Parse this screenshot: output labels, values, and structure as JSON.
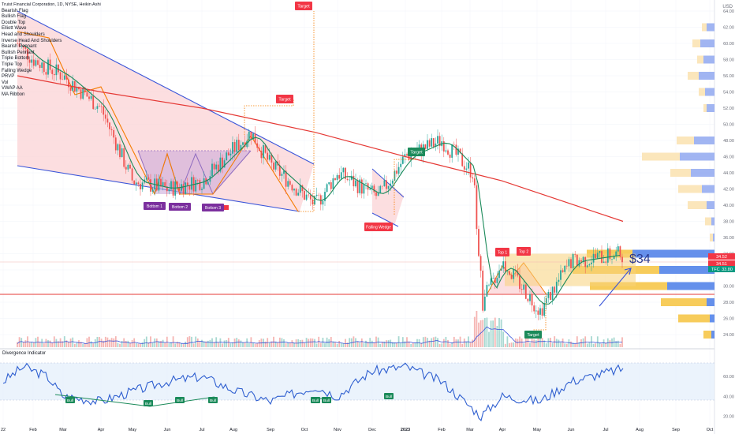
{
  "header": {
    "title": "Truist Financial Corporation, 1D, NYSE, Heikin Ashi",
    "currency": "USD"
  },
  "legend_items": [
    "Bearish Flag",
    "Bullish Flag",
    "Double Top",
    "Elliott Wave",
    "Head and Shoulders",
    "Inverse Head And Shoulders",
    "Bearish Pennant",
    "Bullish Pennant",
    "Triple Bottom",
    "Triple Top",
    "Falling Wedge",
    "PRVP",
    "Vol",
    "VWAP AA",
    "MA Ribbon"
  ],
  "indicator": {
    "title": "Divergence Indicator"
  },
  "annotations": {
    "target_labels": [
      "Target",
      "Target",
      "Target",
      "Target"
    ],
    "bottoms": [
      "Bottom 1",
      "Bottom 2",
      "Bottom 3"
    ],
    "tops": [
      "Top 1",
      "Top 2"
    ],
    "falling_wedge": "Falling Wedge",
    "price_callout": "$34",
    "bull_labels": [
      "Bull",
      "Bull",
      "Bull",
      "Bull",
      "Bull",
      "Bull",
      "Bull"
    ]
  },
  "price_tags": [
    {
      "value": "34.52",
      "color": "#f23645"
    },
    {
      "value": "34.51",
      "color": "#f23645"
    },
    {
      "value": "33.80",
      "color": "#089981",
      "ticker": "TFC"
    }
  ],
  "colors": {
    "up": "#26a69a",
    "down": "#ef5350",
    "ma_slow": "#e53935",
    "ma_fast": "#1b8a5a",
    "wedge_fill": "#f7c6c9",
    "wedge_line": "#3a55d9",
    "orange": "#f57c00",
    "purple": "#8e6bbf",
    "rsi": "#2f5fd0",
    "vp_up": "#90a8f0",
    "vp_down": "#f6cd6a"
  },
  "chart_data": {
    "type": "candlestick",
    "x_ticks": [
      "22",
      "Feb",
      "Mar",
      "Apr",
      "May",
      "Jun",
      "Jul",
      "Aug",
      "Sep",
      "Oct",
      "Nov",
      "Dec",
      "2023",
      "Feb",
      "Mar",
      "Apr",
      "May",
      "Jun",
      "Jul",
      "Aug",
      "Sep",
      "Oct"
    ],
    "price_axis": {
      "ticks": [
        24,
        26,
        28,
        30,
        32,
        34,
        36,
        38,
        40,
        42,
        44,
        46,
        48,
        50,
        52,
        54,
        56,
        58,
        60,
        62,
        64
      ],
      "range": [
        23,
        65
      ]
    },
    "rsi_axis": {
      "ticks": [
        20,
        40,
        60
      ],
      "range": [
        10,
        80
      ]
    },
    "ohlc_path": [
      [
        "Jan 2022",
        60
      ],
      [
        "Feb 2022",
        58
      ],
      [
        "Mar 2022",
        56
      ],
      [
        "Apr 2022",
        52
      ],
      [
        "May 2022",
        43
      ],
      [
        "Jun 2022",
        42
      ],
      [
        "Jul 2022",
        43
      ],
      [
        "Aug 2022",
        49
      ],
      [
        "Sep 2022",
        45
      ],
      [
        "Oct 2022",
        40
      ],
      [
        "Nov 2022",
        44
      ],
      [
        "Dec 2022",
        41
      ],
      [
        "Jan 2023",
        46
      ],
      [
        "Feb 2023",
        48
      ],
      [
        "Mar 2023",
        44
      ],
      [
        "Mar 2023 low",
        28
      ],
      [
        "Apr 2023",
        33
      ],
      [
        "May 2023",
        27
      ],
      [
        "Jun 2023",
        33
      ],
      [
        "Jul 2023",
        34
      ]
    ],
    "ma_slow": [
      [
        "Jan 2022",
        56
      ],
      [
        "Apr 2022",
        54
      ],
      [
        "Jul 2022",
        52
      ],
      [
        "Oct 2022",
        49
      ],
      [
        "Jan 2023",
        46
      ],
      [
        "Apr 2023",
        43
      ],
      [
        "Jul 2023",
        38
      ]
    ],
    "rsi": [
      55,
      70,
      60,
      40,
      35,
      45,
      55,
      60,
      45,
      35,
      50,
      40,
      65,
      70,
      55,
      20,
      40,
      35,
      55,
      68
    ],
    "last_price": 33.8,
    "callout": "$34"
  }
}
